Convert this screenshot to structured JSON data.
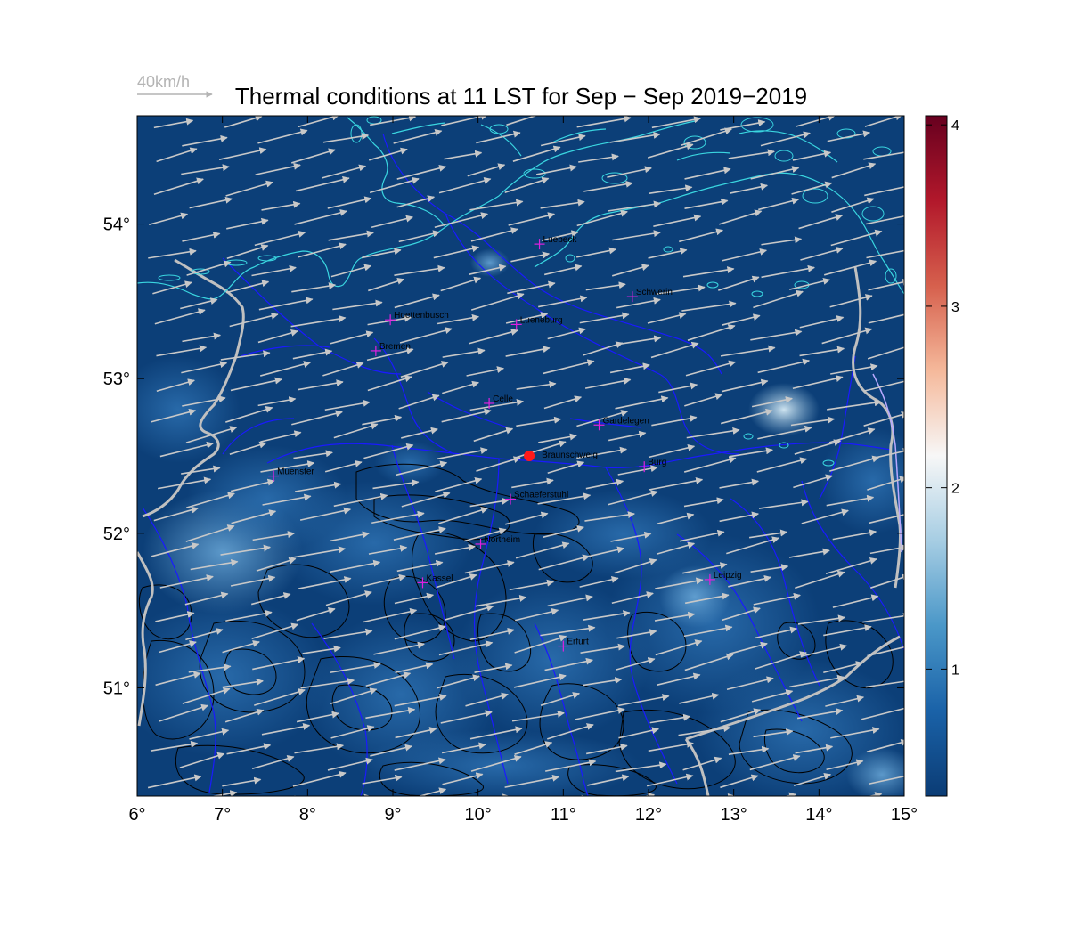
{
  "title": "Thermal conditions at 11 LST for Sep − Sep  2019−2019",
  "reference_vector": {
    "label": "40km/h",
    "speed_kmh": 40
  },
  "map": {
    "lon_range": [
      6,
      15
    ],
    "lat_range": [
      50.3,
      54.7
    ],
    "x_ticks": [
      "6°",
      "7°",
      "8°",
      "9°",
      "10°",
      "11°",
      "12°",
      "13°",
      "14°",
      "15°"
    ],
    "y_ticks": [
      "51°",
      "52°",
      "53°",
      "54°"
    ],
    "field_colors": {
      "dark": "#0c3f78",
      "mid": "#1d5fa3",
      "light": "#5f9fd2"
    },
    "coastline_color": "#3ad6e0",
    "river_color": "#1a1aff",
    "border_color": "#c0c0c0",
    "contour_color": "#000000",
    "vector_color": "#c8c8c8"
  },
  "colorbar": {
    "ticks": [
      "1",
      "2",
      "3",
      "4"
    ],
    "range": [
      0.3,
      4.05
    ],
    "colors": [
      "#0b3c75",
      "#1a62a8",
      "#4a97c8",
      "#a6cde3",
      "#f7f7f7",
      "#f5b99b",
      "#d6604d",
      "#b2182b",
      "#67001f"
    ]
  },
  "cities": [
    {
      "name": "Luebeck",
      "lon": 10.72,
      "lat": 53.87
    },
    {
      "name": "Schwerin",
      "lon": 11.81,
      "lat": 53.53
    },
    {
      "name": "Hoettenbusch",
      "lon": 8.97,
      "lat": 53.38
    },
    {
      "name": "Lueneburg",
      "lon": 10.45,
      "lat": 53.35
    },
    {
      "name": "Bremen",
      "lon": 8.8,
      "lat": 53.18
    },
    {
      "name": "Celle",
      "lon": 10.13,
      "lat": 52.84
    },
    {
      "name": "Gardelegen",
      "lon": 11.42,
      "lat": 52.7
    },
    {
      "name": "Burg",
      "lon": 11.95,
      "lat": 52.43
    },
    {
      "name": "Muenster",
      "lon": 7.6,
      "lat": 52.37
    },
    {
      "name": "Schaeferstuhl",
      "lon": 10.38,
      "lat": 52.22
    },
    {
      "name": "Northeim",
      "lon": 10.03,
      "lat": 51.93
    },
    {
      "name": "Kassel",
      "lon": 9.35,
      "lat": 51.68
    },
    {
      "name": "Leipzig",
      "lon": 12.72,
      "lat": 51.7
    },
    {
      "name": "Erfurt",
      "lon": 11.0,
      "lat": 51.27
    }
  ],
  "highlight": {
    "name": "Braunschweig",
    "lon": 10.6,
    "lat": 52.5,
    "color": "#ff1a1a"
  }
}
